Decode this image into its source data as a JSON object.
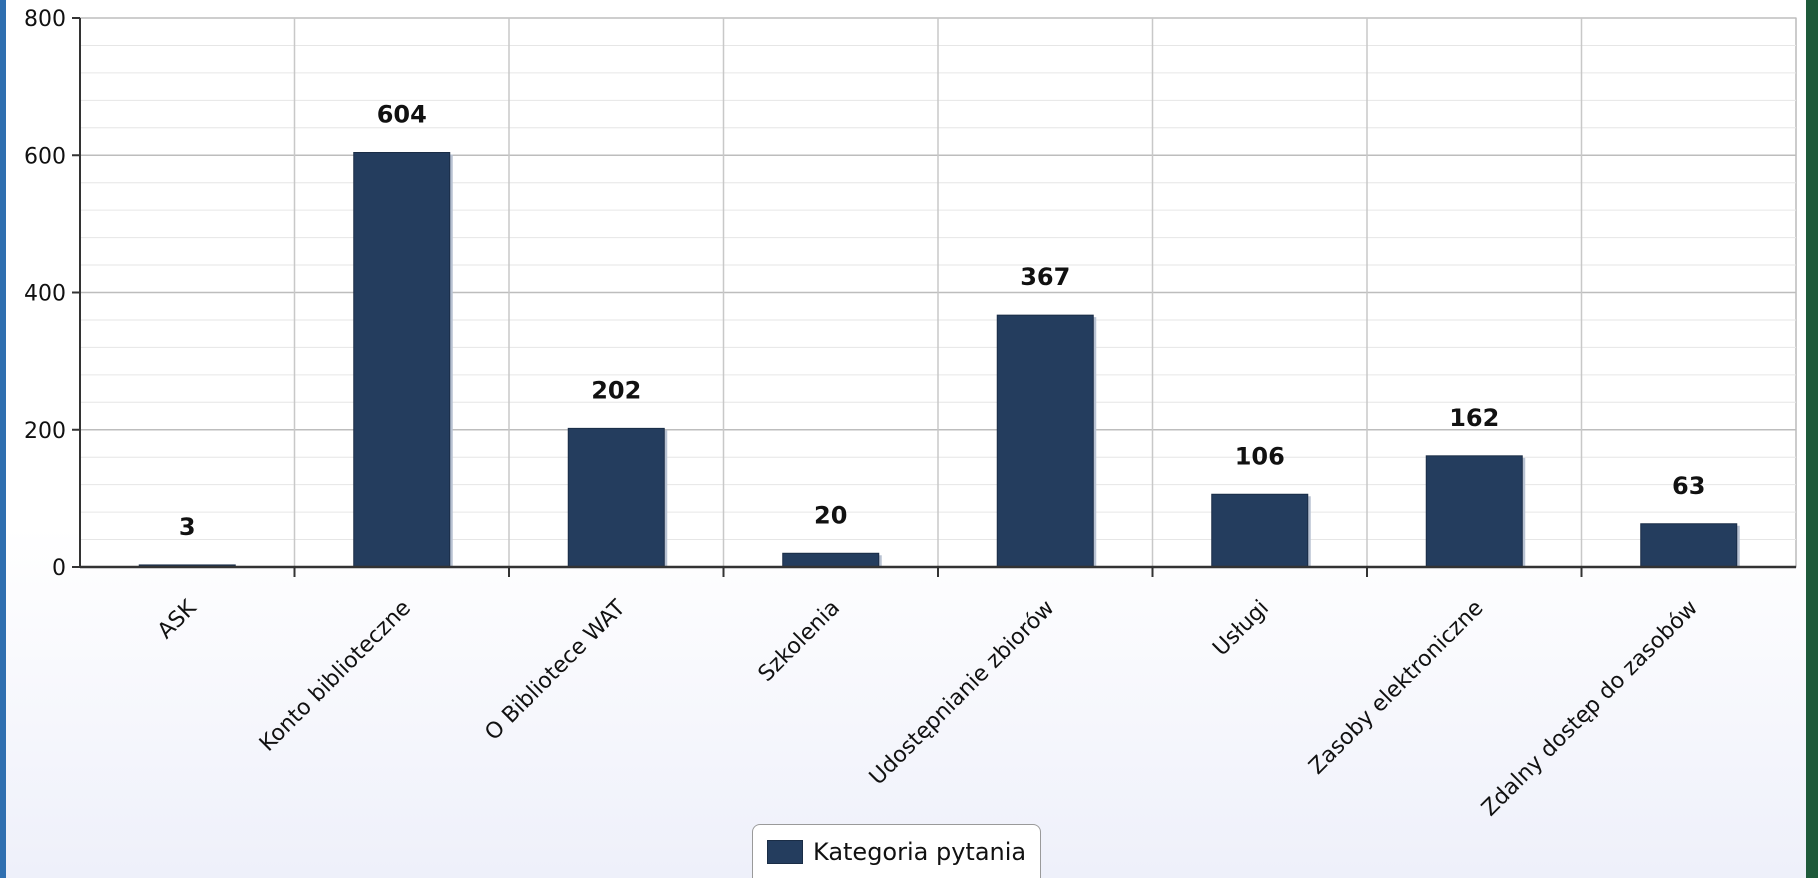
{
  "chart_data": {
    "type": "bar",
    "title": "",
    "xlabel": "",
    "ylabel": "",
    "ylim": [
      0,
      800
    ],
    "yticks": [
      0,
      200,
      400,
      600,
      800
    ],
    "grid": true,
    "legend_position": "bottom-center",
    "categories": [
      "ASK",
      "Konto biblioteczne",
      "O Bibliotece WAT",
      "Szkolenia",
      "Udostępnianie zbiorów",
      "Usługi",
      "Zasoby elektroniczne",
      "Zdalny dostęp do zasobów"
    ],
    "series": [
      {
        "name": "Kategoria pytania",
        "values": [
          3,
          604,
          202,
          20,
          367,
          106,
          162,
          63
        ],
        "color": "#243d5e"
      }
    ]
  }
}
